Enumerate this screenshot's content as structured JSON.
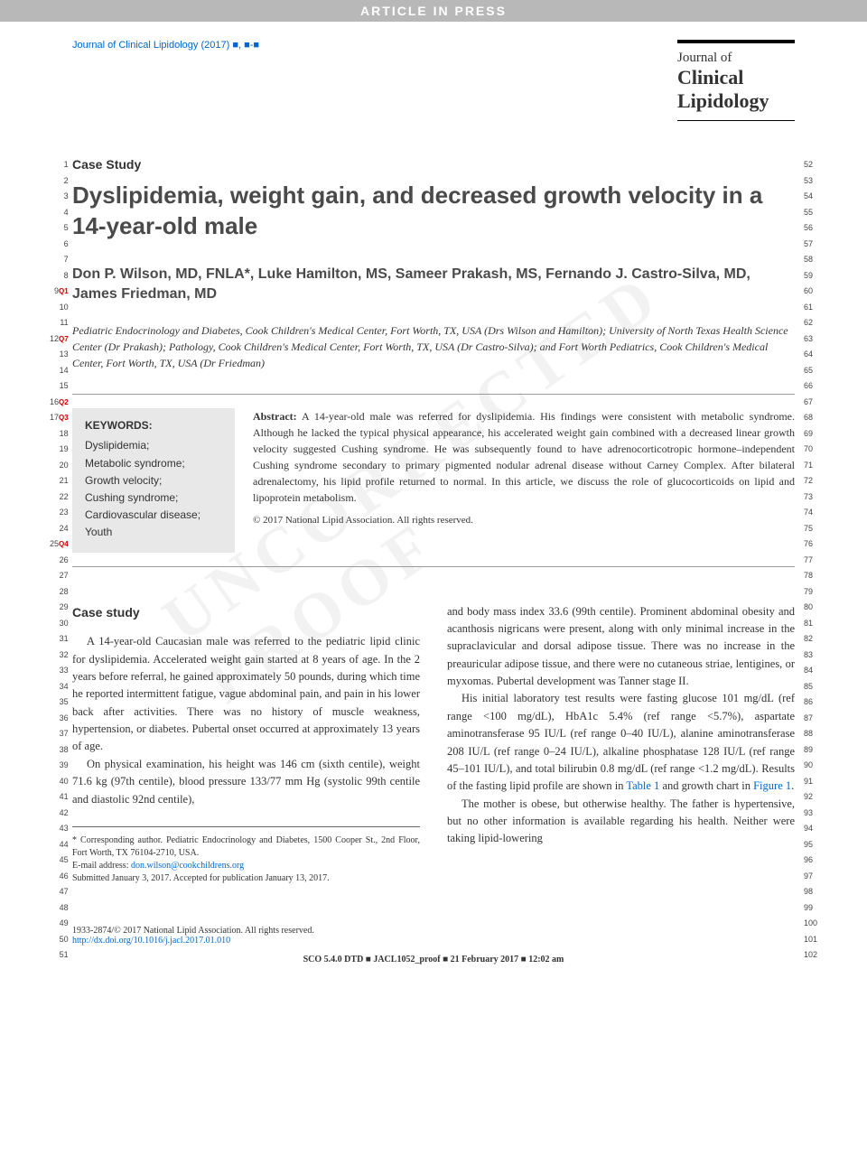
{
  "header": {
    "article_in_press": "ARTICLE IN PRESS",
    "journal_ref": "Journal of Clinical Lipidology (2017) ■, ■-■",
    "logo_line1": "Journal of",
    "logo_line2": "Clinical",
    "logo_line3": "Lipidology"
  },
  "watermark": "UNCORRECTED PROOF",
  "line_numbers": {
    "left_start": 1,
    "left_end": 51,
    "right_start": 52,
    "right_end": 102,
    "q_markers": {
      "9": "Q1",
      "12": "Q7",
      "16": "Q2",
      "17": "Q3",
      "25": "Q4"
    }
  },
  "article": {
    "type_label": "Case Study",
    "title": "Dyslipidemia, weight gain, and decreased growth velocity in a 14-year-old male",
    "authors": "Don P. Wilson, MD, FNLA*, Luke Hamilton, MS, Sameer Prakash, MS, Fernando J. Castro-Silva, MD, James Friedman, MD",
    "affiliations": "Pediatric Endocrinology and Diabetes, Cook Children's Medical Center, Fort Worth, TX, USA (Drs Wilson and Hamilton); University of North Texas Health Science Center (Dr Prakash); Pathology, Cook Children's Medical Center, Fort Worth, TX, USA (Dr Castro-Silva); and Fort Worth Pediatrics, Cook Children's Medical Center, Fort Worth, TX, USA (Dr Friedman)"
  },
  "keywords": {
    "title": "KEYWORDS:",
    "items": [
      "Dyslipidemia;",
      "Metabolic syndrome;",
      "Growth velocity;",
      "Cushing syndrome;",
      "Cardiovascular disease;",
      "Youth"
    ]
  },
  "abstract": {
    "label": "Abstract:",
    "text": "A 14-year-old male was referred for dyslipidemia. His findings were consistent with metabolic syndrome. Although he lacked the typical physical appearance, his accelerated weight gain combined with a decreased linear growth velocity suggested Cushing syndrome. He was subsequently found to have adrenocorticotropic hormone–independent Cushing syndrome secondary to primary pigmented nodular adrenal disease without Carney Complex. After bilateral adrenalectomy, his lipid profile returned to normal. In this article, we discuss the role of glucocorticoids on lipid and lipoprotein metabolism.",
    "copyright": "© 2017 National Lipid Association. All rights reserved."
  },
  "body": {
    "section_heading": "Case study",
    "col1_p1": "A 14-year-old Caucasian male was referred to the pediatric lipid clinic for dyslipidemia. Accelerated weight gain started at 8 years of age. In the 2 years before referral, he gained approximately 50 pounds, during which time he reported intermittent fatigue, vague abdominal pain, and pain in his lower back after activities. There was no history of muscle weakness, hypertension, or diabetes. Pubertal onset occurred at approximately 13 years of age.",
    "col1_p2": "On physical examination, his height was 146 cm (sixth centile), weight 71.6 kg (97th centile), blood pressure 133/77 mm Hg (systolic 99th centile and diastolic 92nd centile),",
    "col2_p1": "and body mass index 33.6 (99th centile). Prominent abdominal obesity and acanthosis nigricans were present, along with only minimal increase in the supraclavicular and dorsal adipose tissue. There was no increase in the preauricular adipose tissue, and there were no cutaneous striae, lentigines, or myxomas. Pubertal development was Tanner stage II.",
    "col2_p2_a": "His initial laboratory test results were fasting glucose 101 mg/dL (ref range <100 mg/dL), HbA1c 5.4% (ref range <5.7%), aspartate aminotransferase 95 IU/L (ref range 0–40 IU/L), alanine aminotransferase 208 IU/L (ref range 0–24 IU/L), alkaline phosphatase 128 IU/L (ref range 45–101 IU/L), and total bilirubin 0.8 mg/dL (ref range <1.2 mg/dL). Results of the fasting lipid profile are shown in ",
    "col2_p2_link1": "Table 1",
    "col2_p2_b": " and growth chart in ",
    "col2_p2_link2": "Figure 1",
    "col2_p2_c": ".",
    "col2_p3": "The mother is obese, but otherwise healthy. The father is hypertensive, but no other information is available regarding his health. Neither were taking lipid-lowering"
  },
  "footnote": {
    "corresponding": "* Corresponding author. Pediatric Endocrinology and Diabetes, 1500 Cooper St., 2nd Floor, Fort Worth, TX 76104-2710, USA.",
    "email_label": "E-mail address: ",
    "email": "don.wilson@cookchildrens.org",
    "submitted": "Submitted January 3, 2017. Accepted for publication January 13, 2017."
  },
  "footer": {
    "issn": "1933-2874/© 2017 National Lipid Association. All rights reserved.",
    "doi": "http://dx.doi.org/10.1016/j.jacl.2017.01.010",
    "proof": "SCO 5.4.0 DTD ■ JACL1052_proof ■ 21 February 2017 ■ 12:02 am"
  },
  "colors": {
    "link": "#0066cc",
    "q_marker": "#cc0000",
    "header_bg": "#b8b8b8",
    "keywords_bg": "#e8e8e8",
    "title_gray": "#4a4a4a"
  }
}
